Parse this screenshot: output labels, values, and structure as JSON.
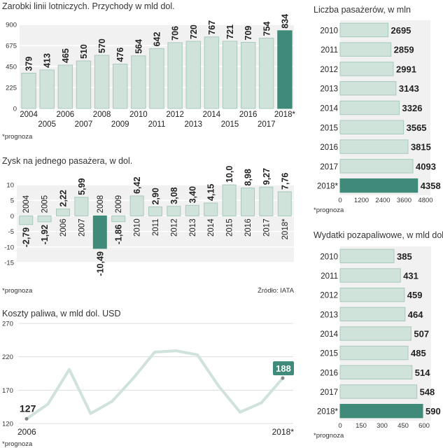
{
  "colors": {
    "bar": "#cfe3da",
    "bar_stroke": "#a9c9bc",
    "highlight": "#3f8a78",
    "panel": "#f1f1f1",
    "line": "#cfe3da",
    "text": "#222222"
  },
  "chart_data": [
    {
      "id": "revenue",
      "type": "bar",
      "title": "Zarobki linii lotniczych.  Przychody w mld dol.",
      "categories": [
        "2004",
        "2005",
        "2006",
        "2007",
        "2008",
        "2009",
        "2010",
        "2011",
        "2012",
        "2013",
        "2014",
        "2015",
        "2016",
        "2017",
        "2018*"
      ],
      "values": [
        379,
        413,
        465,
        510,
        570,
        476,
        564,
        642,
        706,
        720,
        767,
        721,
        709,
        754,
        834
      ],
      "value_labels": [
        "379",
        "413",
        "465",
        "510",
        "570",
        "476",
        "564",
        "642",
        "706",
        "720",
        "767",
        "721",
        "709",
        "754",
        "834"
      ],
      "ylim": [
        0,
        900
      ],
      "yticks": [
        "0",
        "225",
        "450",
        "675",
        "900"
      ],
      "highlight_index": 14,
      "footnote": "*prognoza"
    },
    {
      "id": "profit",
      "type": "bar",
      "title": "Zysk na jednego pasażera, w dol.",
      "categories": [
        "2004",
        "2005",
        "2006",
        "2007",
        "2008",
        "2009",
        "2010",
        "2011",
        "2012",
        "2013",
        "2014",
        "2015",
        "2016",
        "2017",
        "2018*"
      ],
      "values": [
        -2.79,
        -1.92,
        2.22,
        5.99,
        -10.49,
        -1.86,
        6.42,
        2.9,
        3.08,
        3.4,
        4.15,
        10.0,
        8.98,
        9.27,
        7.76
      ],
      "value_labels": [
        "-2,79",
        "-1,92",
        "2,22",
        "5,99",
        "-10,49",
        "-1,86",
        "6,42",
        "2,90",
        "3,08",
        "3,40",
        "4,15",
        "10,0",
        "8,98",
        "9,27",
        "7,76"
      ],
      "ylim": [
        -15,
        10
      ],
      "yticks": [
        "10",
        "5",
        "0",
        "-5",
        "-10",
        "-15"
      ],
      "highlight_index": 4,
      "footnote": "*prognoza",
      "source": "Źródło: IATA"
    },
    {
      "id": "fuel",
      "type": "line",
      "title": "Koszty paliwa, w mld dol. USD",
      "x": [
        "2006",
        "2007",
        "2008",
        "2009",
        "2010",
        "2011",
        "2012",
        "2013",
        "2014",
        "2015",
        "2016",
        "2017",
        "2018*"
      ],
      "values": [
        127,
        149,
        201,
        135,
        153,
        188,
        227,
        229,
        223,
        176,
        137,
        151,
        188
      ],
      "ylim": [
        120,
        270
      ],
      "yticks": [
        "270",
        "220",
        "170",
        "120"
      ],
      "x_labels": [
        "2006",
        "2018*"
      ],
      "start_label": "127",
      "end_label": "188",
      "footnote": "*prognoza"
    },
    {
      "id": "passengers",
      "type": "bar",
      "orientation": "horizontal",
      "title": "Liczba pasażerów, w mln",
      "categories": [
        "2010",
        "2011",
        "2012",
        "2013",
        "2014",
        "2015",
        "2016",
        "2017",
        "2018*"
      ],
      "values": [
        2695,
        2859,
        2991,
        3143,
        3326,
        3565,
        3815,
        4093,
        4358
      ],
      "value_labels": [
        "2695",
        "2859",
        "2991",
        "3143",
        "3326",
        "3565",
        "3815",
        "4093",
        "4358"
      ],
      "xlim": [
        0,
        4800
      ],
      "xticks": [
        "0",
        "1200",
        "2400",
        "3600",
        "4800"
      ],
      "highlight_index": 8,
      "footnote": "*prognoza"
    },
    {
      "id": "nonfuel",
      "type": "bar",
      "orientation": "horizontal",
      "title": "Wydatki pozapaliwowe, w mld dol",
      "categories": [
        "2010",
        "2011",
        "2012",
        "2013",
        "2014",
        "2015",
        "2016",
        "2017",
        "2018*"
      ],
      "values": [
        385,
        431,
        459,
        464,
        507,
        485,
        514,
        548,
        590
      ],
      "value_labels": [
        "385",
        "431",
        "459",
        "464",
        "507",
        "485",
        "514",
        "548",
        "590"
      ],
      "xlim": [
        0,
        600
      ],
      "xticks": [
        "0",
        "150",
        "300",
        "450",
        "600"
      ],
      "highlight_index": 8,
      "footnote": "*prognoza"
    }
  ]
}
